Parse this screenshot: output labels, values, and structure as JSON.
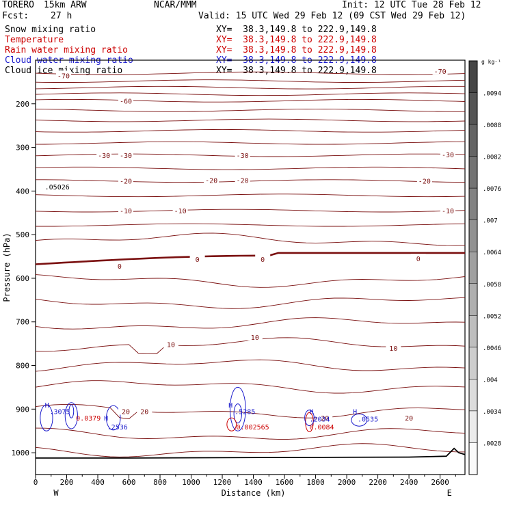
{
  "header": {
    "model": "TORERO",
    "resolution": "15km ARW",
    "org": "NCAR/MMM",
    "init": "Init: 12 UTC Tue 28 Feb 12",
    "fcst_label": "Fcst:",
    "fcst_value": "27 h",
    "valid": "Valid: 15 UTC Wed 29 Feb 12 (09 CST Wed 29 Feb 12)"
  },
  "fields": [
    {
      "name": "Snow mixing ratio",
      "xy": "XY=  38.3,149.8 to 222.9,149.8",
      "color": "#000000"
    },
    {
      "name": "Temperature",
      "xy": "XY=  38.3,149.8 to 222.9,149.8",
      "color": "#cc0000"
    },
    {
      "name": "Rain water mixing ratio",
      "xy": "XY=  38.3,149.8 to 222.9,149.8",
      "color": "#cc0000"
    },
    {
      "name": "Cloud water mixing ratio",
      "xy": "XY=  38.3,149.8 to 222.9,149.8",
      "color": "#1a1acc"
    },
    {
      "name": "Cloud ice mixing ratio",
      "xy": "XY=  38.3,149.8 to 222.9,149.8",
      "color": "#000000"
    }
  ],
  "chart_data": {
    "type": "contour",
    "xlabel": "Distance (km)",
    "ylabel": "Pressure (hPa)",
    "xlim": [
      0,
      2760
    ],
    "ylim": [
      1050,
      100
    ],
    "x_ticks": [
      0,
      200,
      400,
      600,
      800,
      1000,
      1200,
      1400,
      1600,
      1800,
      2000,
      2200,
      2400,
      2600
    ],
    "y_ticks": [
      200,
      300,
      400,
      500,
      600,
      700,
      800,
      900,
      1000
    ],
    "endpoints": {
      "left": "W",
      "right": "E"
    },
    "temperature_labels": [
      {
        "text": "-70",
        "x": 180,
        "p": 135
      },
      {
        "text": "-70",
        "x": 2600,
        "p": 125
      },
      {
        "text": "-60",
        "x": 580,
        "p": 193
      },
      {
        "text": "-30",
        "x": 440,
        "p": 318
      },
      {
        "text": "-30",
        "x": 580,
        "p": 318
      },
      {
        "text": "-30",
        "x": 1330,
        "p": 318
      },
      {
        "text": "-30",
        "x": 2650,
        "p": 316
      },
      {
        "text": "-20",
        "x": 580,
        "p": 377
      },
      {
        "text": "-20",
        "x": 1130,
        "p": 375
      },
      {
        "text": "-20",
        "x": 1330,
        "p": 375
      },
      {
        "text": "-20",
        "x": 2500,
        "p": 377
      },
      {
        "text": "-10",
        "x": 580,
        "p": 445
      },
      {
        "text": "-10",
        "x": 930,
        "p": 445
      },
      {
        "text": "-10",
        "x": 2650,
        "p": 445
      },
      {
        "text": "0",
        "x": 540,
        "p": 572
      },
      {
        "text": "0",
        "x": 1040,
        "p": 556
      },
      {
        "text": "0",
        "x": 1460,
        "p": 556
      },
      {
        "text": "0",
        "x": 2460,
        "p": 555
      },
      {
        "text": "10",
        "x": 870,
        "p": 751
      },
      {
        "text": "10",
        "x": 1410,
        "p": 735
      },
      {
        "text": "10",
        "x": 2300,
        "p": 760
      },
      {
        "text": "20",
        "x": 580,
        "p": 905
      },
      {
        "text": "20",
        "x": 700,
        "p": 905
      },
      {
        "text": "20",
        "x": 1860,
        "p": 920
      },
      {
        "text": "20",
        "x": 2400,
        "p": 920
      }
    ],
    "extrema": [
      {
        "text": "H",
        "x": 60,
        "p": 890,
        "color": "#1a1acc"
      },
      {
        "text": ".3075",
        "x": 90,
        "p": 905,
        "color": "#1a1acc"
      },
      {
        "text": "0.0379",
        "x": 260,
        "p": 920,
        "color": "#cc0000"
      },
      {
        "text": "H",
        "x": 440,
        "p": 920,
        "color": "#1a1acc"
      },
      {
        "text": ".2536",
        "x": 460,
        "p": 940,
        "color": "#1a1acc"
      },
      {
        "text": "H",
        "x": 1240,
        "p": 890,
        "color": "#1a1acc"
      },
      {
        "text": ".5285",
        "x": 1280,
        "p": 905,
        "color": "#1a1acc"
      },
      {
        "text": "0.002565",
        "x": 1290,
        "p": 940,
        "color": "#cc0000"
      },
      {
        "text": "H",
        "x": 1760,
        "p": 905,
        "color": "#1a1acc"
      },
      {
        "text": ".2034",
        "x": 1760,
        "p": 922,
        "color": "#1a1acc"
      },
      {
        "text": "0.0084",
        "x": 1760,
        "p": 940,
        "color": "#cc0000"
      },
      {
        "text": "H",
        "x": 2040,
        "p": 905,
        "color": "#1a1acc"
      },
      {
        "text": ".0535",
        "x": 2070,
        "p": 922,
        "color": "#1a1acc"
      },
      {
        "text": ".05026",
        "x": 60,
        "p": 390,
        "color": "#000000"
      }
    ],
    "colorbar": {
      "unit": "g kg⁻¹",
      "labels": [
        ".0094",
        ".0088",
        ".0082",
        ".0076",
        ".007",
        ".0064",
        ".0058",
        ".0052",
        ".0046",
        ".004",
        ".0034",
        ".0028"
      ]
    }
  }
}
